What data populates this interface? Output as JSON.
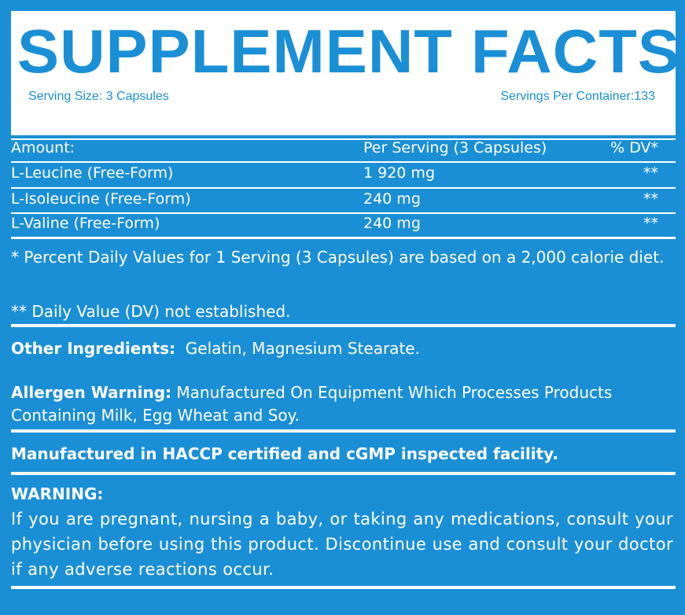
{
  "header": {
    "title": "SUPPLEMENT FACTS",
    "serving_size": "Serving Size: 3 Capsules",
    "servings_per_container": "Servings Per Container:133"
  },
  "table": {
    "columns": [
      "Amount:",
      "Per Serving (3 Capsules)",
      "% DV*"
    ],
    "rows": [
      [
        "L-Leucine (Free-Form)",
        "1 920 mg",
        "**"
      ],
      [
        "L-Isoleucine (Free-Form)",
        "240 mg",
        "**"
      ],
      [
        "L-Valine (Free-Form)",
        "240 mg",
        "**"
      ]
    ]
  },
  "footnotes": [
    "* Percent Daily Values for 1 Serving (3 Capsules) are based on a 2,000 calorie diet.",
    "** Daily Value (DV) not established."
  ],
  "other_ingredients": {
    "label": "Other Ingredients:",
    "text": "Gelatin, Magnesium Stearate."
  },
  "allergen": {
    "label": "Allergen Warning:",
    "text": "Manufactured On Equipment Which Processes Products Containing Milk, Egg Wheat and Soy."
  },
  "manufactured": "Manufactured in HACCP certified and cGMP inspected facility.",
  "warning": {
    "label": "WARNING:",
    "text": "If you are pregnant, nursing a baby, or taking any medications, consult your physician before using this product. Discontinue use and consult your doctor if any adverse reactions occur."
  }
}
